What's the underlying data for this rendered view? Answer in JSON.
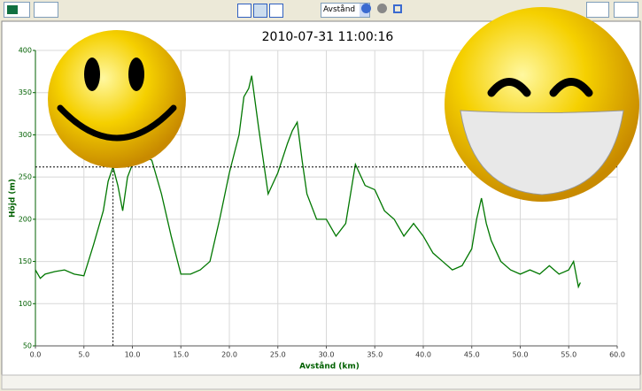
{
  "toolbar": {
    "view_select": "Avstånd"
  },
  "chart_data": {
    "type": "line",
    "title": "2010-07-31 11:00:16",
    "x_label": "Avstånd (km)",
    "y_label": "Höjd (m)",
    "x": [
      0,
      0.5,
      1,
      2,
      3,
      4,
      5,
      6,
      7,
      7.5,
      8,
      8.5,
      9,
      9.5,
      10,
      11,
      12,
      13,
      14,
      15,
      16,
      17,
      18,
      19,
      20,
      21,
      21.5,
      22,
      22.3,
      23,
      23.5,
      24,
      25,
      26,
      26.5,
      27,
      27.5,
      28,
      29,
      30,
      31,
      32,
      33,
      34,
      35,
      36,
      37,
      38,
      39,
      40,
      41,
      42,
      43,
      44,
      45,
      45.5,
      46,
      46.5,
      47,
      48,
      49,
      50,
      51,
      52,
      53,
      54,
      55,
      55.5,
      56,
      56.2
    ],
    "series": [
      {
        "name": "Höjd",
        "color": "#007700",
        "values": [
          140,
          130,
          135,
          138,
          140,
          135,
          133,
          170,
          210,
          245,
          262,
          240,
          210,
          250,
          265,
          275,
          270,
          230,
          180,
          135,
          135,
          140,
          150,
          200,
          255,
          300,
          345,
          355,
          370,
          310,
          270,
          230,
          255,
          290,
          305,
          315,
          270,
          230,
          200,
          200,
          180,
          195,
          265,
          240,
          235,
          210,
          200,
          180,
          195,
          180,
          160,
          150,
          140,
          145,
          165,
          200,
          225,
          195,
          175,
          150,
          140,
          135,
          140,
          135,
          145,
          135,
          140,
          150,
          120,
          125
        ]
      }
    ],
    "cursor": {
      "x": 8,
      "y": 262
    },
    "xlim": [
      0,
      60
    ],
    "ylim": [
      50,
      400
    ],
    "xticks": [
      {
        "value": 0,
        "label": "0.0"
      },
      {
        "value": 5,
        "label": "5.0"
      },
      {
        "value": 10,
        "label": "10.0"
      },
      {
        "value": 15,
        "label": "15.0"
      },
      {
        "value": 20,
        "label": "20.0"
      },
      {
        "value": 25,
        "label": "25.0"
      },
      {
        "value": 30,
        "label": "30.0"
      },
      {
        "value": 35,
        "label": "35.0"
      },
      {
        "value": 40,
        "label": "40.0"
      },
      {
        "value": 45,
        "label": "45.0"
      },
      {
        "value": 50,
        "label": "50.0"
      },
      {
        "value": 55,
        "label": "55.0"
      },
      {
        "value": 60,
        "label": "60.0"
      }
    ],
    "yticks": [
      50,
      100,
      150,
      200,
      250,
      300,
      350,
      400
    ],
    "grid": true
  }
}
